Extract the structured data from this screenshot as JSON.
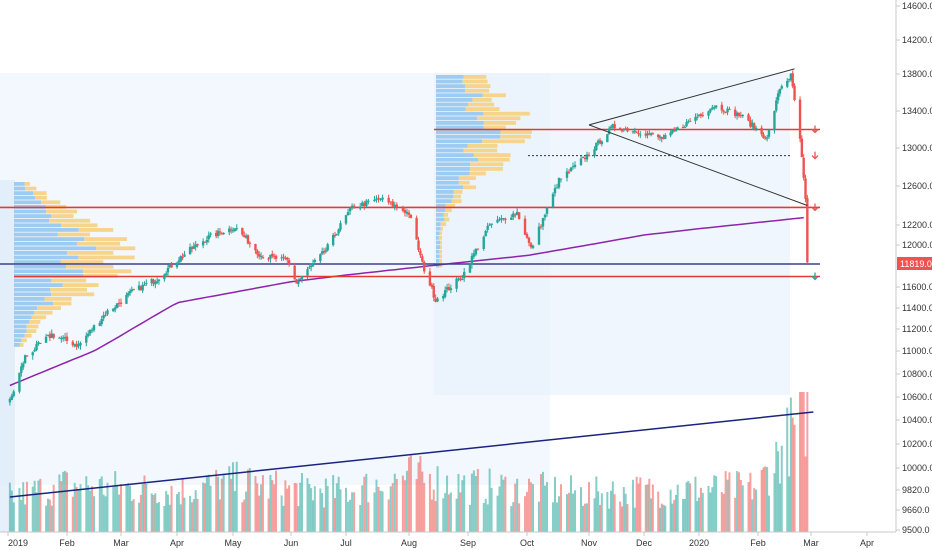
{
  "chart_data": {
    "type": "candlestick",
    "title": "",
    "xlabel": "",
    "ylabel": "",
    "x_ticks": [
      "2019",
      "Feb",
      "Mar",
      "Apr",
      "May",
      "Jun",
      "Jul",
      "Aug",
      "Sep",
      "Oct",
      "Nov",
      "Dec",
      "2020",
      "Feb",
      "Mar",
      "Apr"
    ],
    "y_ticks": [
      "14600.0",
      "14200.0",
      "13800.0",
      "13400.0",
      "13000.0",
      "12600.0",
      "12200.0",
      "12000.0",
      "11600.0",
      "11400.0",
      "11200.0",
      "11000.0",
      "10800.0",
      "10600.0",
      "10400.0",
      "10200.0",
      "10000.0",
      "9820.0",
      "9660.0",
      "9500.0"
    ],
    "ylim": [
      9500,
      14600
    ],
    "last_price": "11819.0",
    "price_path": [
      [
        "2019-01-02",
        10560
      ],
      [
        "2019-01-10",
        10950
      ],
      [
        "2019-01-24",
        11150
      ],
      [
        "2019-02-07",
        11050
      ],
      [
        "2019-02-21",
        11350
      ],
      [
        "2019-03-07",
        11550
      ],
      [
        "2019-03-21",
        11680
      ],
      [
        "2019-04-04",
        11900
      ],
      [
        "2019-04-18",
        12080
      ],
      [
        "2019-05-02",
        12180
      ],
      [
        "2019-05-16",
        11900
      ],
      [
        "2019-05-30",
        11850
      ],
      [
        "2019-06-04",
        11640
      ],
      [
        "2019-06-20",
        11950
      ],
      [
        "2019-07-04",
        12380
      ],
      [
        "2019-07-18",
        12470
      ],
      [
        "2019-08-01",
        12320
      ],
      [
        "2019-08-08",
        11820
      ],
      [
        "2019-08-15",
        11480
      ],
      [
        "2019-08-29",
        11700
      ],
      [
        "2019-09-12",
        12200
      ],
      [
        "2019-09-26",
        12330
      ],
      [
        "2019-10-03",
        11960
      ],
      [
        "2019-10-17",
        12660
      ],
      [
        "2019-10-31",
        12920
      ],
      [
        "2019-11-14",
        13230
      ],
      [
        "2019-11-28",
        13180
      ],
      [
        "2019-12-12",
        13100
      ],
      [
        "2019-12-26",
        13280
      ],
      [
        "2020-01-09",
        13460
      ],
      [
        "2020-01-23",
        13350
      ],
      [
        "2020-02-06",
        13100
      ],
      [
        "2020-02-13",
        13650
      ],
      [
        "2020-02-19",
        13780
      ],
      [
        "2020-02-24",
        13100
      ],
      [
        "2020-02-27",
        12450
      ],
      [
        "2020-02-28",
        11819
      ]
    ],
    "volume_path": [
      [
        "2019-01-02",
        60
      ],
      [
        "2019-02-01",
        80
      ],
      [
        "2019-03-01",
        75
      ],
      [
        "2019-04-01",
        70
      ],
      [
        "2019-05-01",
        85
      ],
      [
        "2019-06-01",
        72
      ],
      [
        "2019-07-01",
        68
      ],
      [
        "2019-08-01",
        95
      ],
      [
        "2019-09-01",
        78
      ],
      [
        "2019-10-01",
        74
      ],
      [
        "2019-11-01",
        66
      ],
      [
        "2019-12-01",
        70
      ],
      [
        "2020-01-01",
        72
      ],
      [
        "2020-02-01",
        76
      ],
      [
        "2020-02-24",
        190
      ],
      [
        "2020-02-28",
        210
      ]
    ],
    "moving_average": [
      [
        "2019-01-02",
        10700
      ],
      [
        "2019-02-15",
        11000
      ],
      [
        "2019-04-01",
        11450
      ],
      [
        "2019-06-01",
        11650
      ],
      [
        "2019-08-01",
        11780
      ],
      [
        "2019-10-01",
        11900
      ],
      [
        "2019-12-01",
        12100
      ],
      [
        "2020-02-28",
        12280
      ]
    ],
    "horizontal_lines": [
      {
        "price": 12380,
        "color": "#e53935"
      },
      {
        "price": 13200,
        "color": "#e53935"
      },
      {
        "price": 11700,
        "color": "#e53935"
      },
      {
        "price": 11819,
        "color": "#3f3f8f"
      },
      {
        "price": 12920,
        "color": "#333333",
        "style": "dotted"
      }
    ],
    "wedge_lines": [
      [
        [
          "2019-11-01",
          13250
        ],
        [
          "2020-02-21",
          13860
        ]
      ],
      [
        [
          "2019-11-01",
          13250
        ],
        [
          "2020-02-28",
          12400
        ]
      ]
    ],
    "volume_trend": [
      [
        "2019-01-02",
        70
      ],
      [
        "2020-02-28",
        150
      ]
    ],
    "colors": {
      "up": "#26a69a",
      "down": "#ef5350",
      "ma": "#8e24aa",
      "trend": "#1a237e",
      "price_label": "#ef5350",
      "profile_blue": "#9ecbf2",
      "profile_yellow": "#f6d48b"
    }
  }
}
